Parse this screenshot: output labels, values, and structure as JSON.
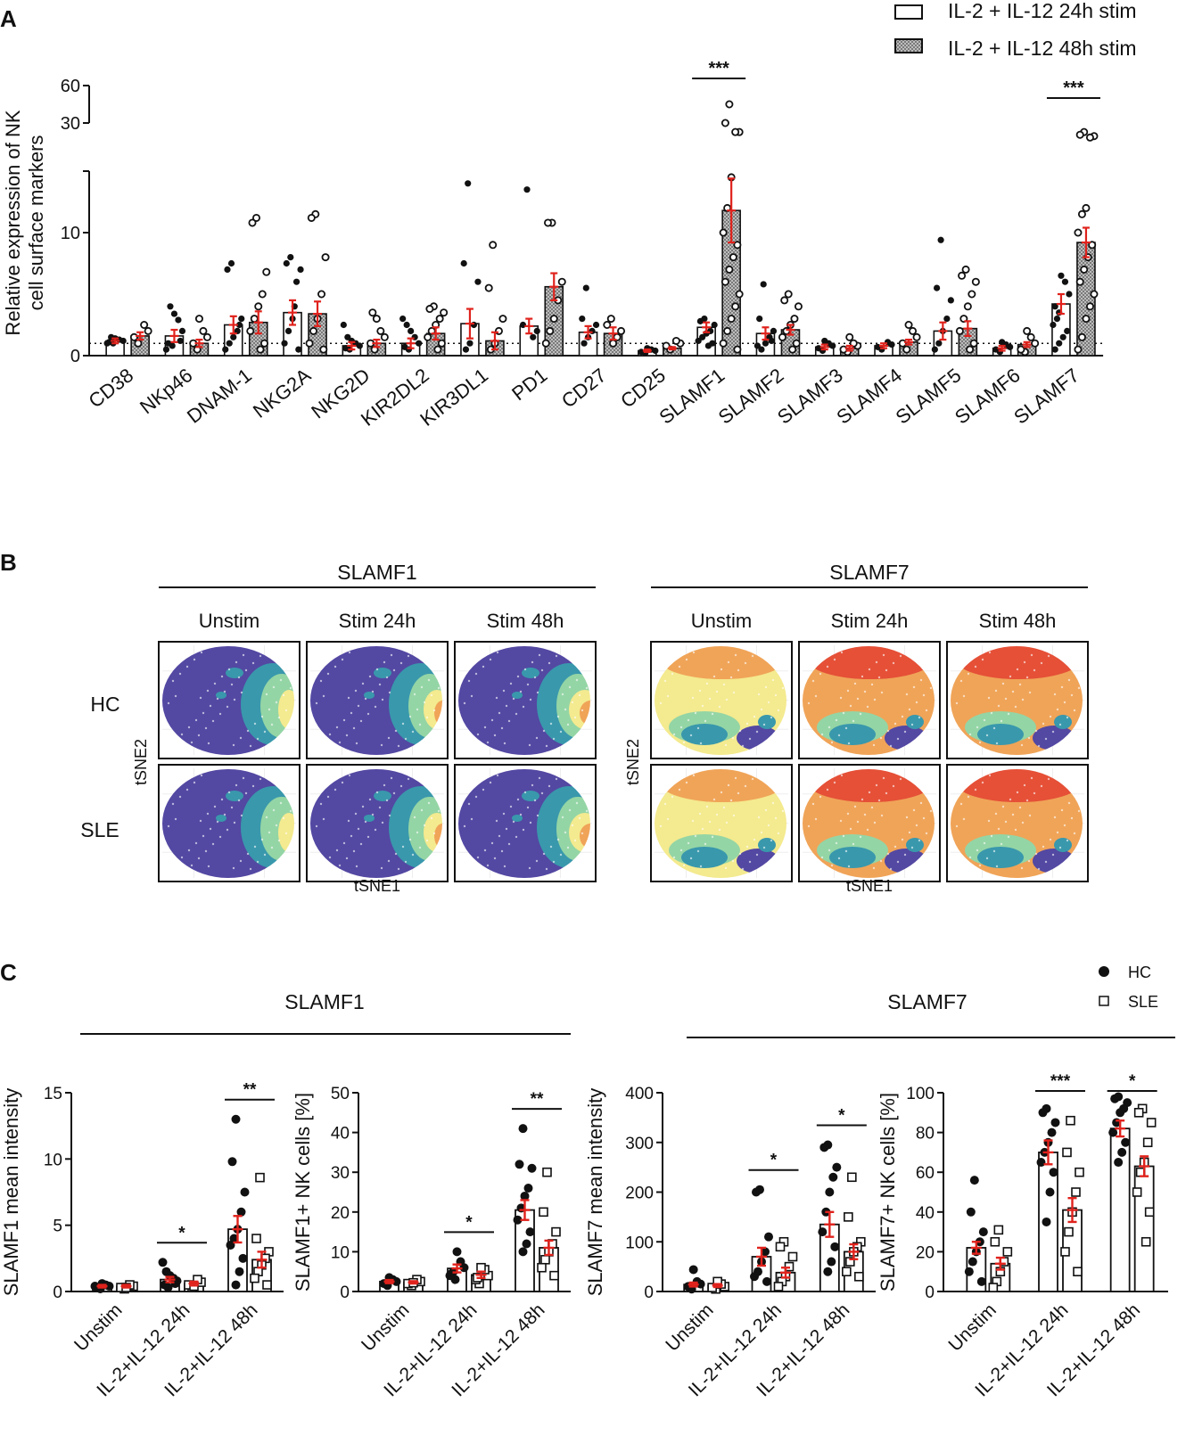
{
  "panel_labels": {
    "a": "A",
    "b": "B",
    "c": "C"
  },
  "colors": {
    "error_bar": "#e0221c",
    "bar_edge": "#111111",
    "hatch": "#9a9a9a"
  },
  "chart_data": [
    {
      "id": "panelA",
      "type": "bar",
      "ylabel": "Relative expression of NK cell surface markers",
      "ylabel_lines": [
        "Relative expression of NK",
        "cell surface markers"
      ],
      "lower_ticks": [
        "0",
        "10"
      ],
      "upper_ticks": [
        "30",
        "60"
      ],
      "ylim_lower": [
        0,
        15
      ],
      "ylim_upper": [
        30,
        60
      ],
      "reference_line": 1,
      "legend": [
        "IL-2 + IL-12 24h stim",
        "IL-2 + IL-12 48h stim"
      ],
      "categories": [
        "CD38",
        "NKp46",
        "DNAM-1",
        "NKG2A",
        "NKG2D",
        "KIR2DL2",
        "KIR3DL1",
        "PD1",
        "CD27",
        "CD25",
        "SLAMF1",
        "SLAMF2",
        "SLAMF3",
        "SLAMF4",
        "SLAMF5",
        "SLAMF6",
        "SLAMF7"
      ],
      "series": [
        {
          "name": "IL-2 + IL-12 24h stim",
          "values": [
            1.2,
            1.6,
            2.5,
            3.5,
            0.8,
            1.0,
            2.6,
            2.4,
            1.9,
            0.4,
            2.3,
            1.8,
            0.7,
            0.8,
            2.0,
            0.6,
            4.2
          ],
          "sem": [
            0.2,
            0.5,
            0.7,
            1.0,
            0.3,
            0.4,
            1.2,
            0.6,
            0.5,
            0.1,
            0.4,
            0.5,
            0.2,
            0.2,
            0.7,
            0.2,
            0.8
          ],
          "points": [
            [
              1.0,
              1.1,
              1.2,
              1.3,
              1.4,
              1.5,
              1.0
            ],
            [
              0.8,
              1.0,
              2.0,
              2.9,
              3.4,
              4.0,
              0.5,
              1.2
            ],
            [
              7.5,
              7.0,
              3.0,
              2.0,
              1.5,
              1.0,
              0.5,
              2.5
            ],
            [
              8.0,
              7.5,
              7.0,
              6.0,
              3.0,
              2.0,
              1.0,
              0.5,
              4.0
            ],
            [
              0.5,
              0.6,
              0.8,
              1.0,
              1.2,
              1.5,
              2.5
            ],
            [
              0.5,
              0.7,
              1.0,
              1.5,
              2.0,
              2.5,
              3.0
            ],
            [
              14.0,
              7.5,
              6.0,
              2.5,
              1.0,
              0.5
            ],
            [
              13.5,
              2.5,
              2.0,
              1.5
            ],
            [
              5.5,
              3.0,
              2.5,
              2.0,
              1.5,
              1.0
            ],
            [
              0.2,
              0.3,
              0.4,
              0.5,
              0.6
            ],
            [
              3.0,
              2.8,
              2.5,
              2.0,
              1.8,
              1.5,
              1.2,
              1.0,
              0.8
            ],
            [
              5.8,
              3.0,
              2.0,
              1.5,
              1.0,
              0.5,
              0.8,
              1.2
            ],
            [
              0.4,
              0.6,
              0.8,
              1.0,
              1.2
            ],
            [
              0.5,
              0.7,
              0.9,
              1.1
            ],
            [
              9.4,
              5.5,
              4.5,
              3.0,
              2.0,
              1.0,
              0.5
            ],
            [
              0.3,
              0.5,
              0.7,
              0.9,
              1.1
            ],
            [
              3.5,
              4.0,
              5.0,
              6.0,
              6.5,
              3.0,
              2.5,
              2.0,
              1.5,
              1.0,
              0.5
            ]
          ]
        },
        {
          "name": "IL-2 + IL-12 48h stim",
          "values": [
            1.6,
            1.0,
            2.7,
            3.4,
            1.0,
            1.8,
            1.2,
            5.6,
            1.8,
            0.6,
            11.8,
            2.1,
            0.6,
            1.1,
            2.2,
            0.9,
            9.2
          ],
          "sem": [
            0.3,
            0.3,
            0.9,
            1.0,
            0.3,
            0.5,
            0.7,
            1.1,
            0.5,
            0.1,
            2.6,
            0.4,
            0.2,
            0.2,
            0.6,
            0.2,
            1.2
          ],
          "points": [
            [
              1.0,
              1.5,
              2.0,
              2.5
            ],
            [
              0.5,
              1.0,
              1.5,
              2.0,
              3.0
            ],
            [
              11.2,
              10.8,
              6.8,
              5.0,
              4.0,
              3.0,
              2.0,
              1.0,
              0.5
            ],
            [
              11.5,
              11.2,
              8.0,
              5.0,
              3.0,
              2.0,
              1.0,
              0.5
            ],
            [
              0.5,
              1.0,
              1.5,
              2.0,
              3.0,
              3.5
            ],
            [
              4.0,
              3.8,
              3.5,
              3.0,
              2.5,
              2.0,
              1.5,
              1.0,
              0.5
            ],
            [
              9.0,
              5.5,
              3.0,
              2.0,
              1.0,
              0.5
            ],
            [
              10.8,
              10.8,
              6.0,
              4.5,
              3.0,
              2.0,
              1.0
            ],
            [
              3.0,
              2.5,
              2.0,
              1.5,
              1.0
            ],
            [
              0.5,
              0.8,
              1.0,
              1.2
            ],
            [
              45.0,
              30.0,
              28.0,
              28.0,
              14.5,
              12.0,
              10.0,
              9.0,
              8.0,
              7.0,
              6.0,
              5.0,
              4.0,
              3.0,
              2.0,
              1.0,
              0.5
            ],
            [
              5.0,
              4.5,
              4.0,
              3.0,
              2.5,
              2.0,
              1.5,
              1.0,
              0.5
            ],
            [
              0.3,
              0.5,
              0.8,
              1.0,
              1.5
            ],
            [
              0.5,
              1.0,
              1.5,
              2.0,
              2.5
            ],
            [
              7.0,
              6.5,
              6.0,
              5.0,
              4.0,
              3.0,
              2.0,
              1.0,
              0.5
            ],
            [
              0.3,
              0.5,
              1.0,
              1.5,
              2.0
            ],
            [
              28.0,
              27.0,
              26.5,
              26.0,
              12.0,
              11.5,
              10.0,
              9.0,
              8.0,
              7.0,
              6.0,
              5.0,
              4.0,
              3.0,
              1.5,
              0.5
            ]
          ]
        }
      ],
      "significance": [
        {
          "category": "SLAMF1",
          "label": "***"
        },
        {
          "category": "SLAMF7",
          "label": "***"
        }
      ]
    },
    {
      "id": "panelC1",
      "type": "bar",
      "group_title": "SLAMF1",
      "ylabel": "SLAMF1 mean intensity",
      "yticks": [
        0,
        5,
        10,
        15
      ],
      "ylim": [
        0,
        15
      ],
      "categories": [
        "Unstim",
        "IL-2+IL-12 24h",
        "IL-2+IL-12 48h"
      ],
      "series": [
        {
          "name": "HC",
          "values": [
            0.4,
            0.9,
            4.7
          ],
          "sem": [
            0.1,
            0.2,
            1.0
          ],
          "points": [
            [
              0.2,
              0.3,
              0.4,
              0.5,
              0.6,
              0.3,
              0.4
            ],
            [
              0.3,
              0.5,
              0.8,
              1.0,
              1.2,
              1.5,
              2.2,
              0.6
            ],
            [
              13.0,
              9.8,
              7.5,
              6.0,
              4.7,
              4.0,
              3.5,
              2.5,
              1.5,
              0.5
            ]
          ]
        },
        {
          "name": "SLE",
          "values": [
            0.4,
            0.6,
            2.4
          ],
          "sem": [
            0.1,
            0.15,
            0.6
          ],
          "points": [
            [
              0.2,
              0.3,
              0.4,
              0.5,
              0.3
            ],
            [
              0.3,
              0.5,
              0.7,
              0.9,
              0.4
            ],
            [
              8.6,
              4.0,
              3.0,
              2.5,
              2.0,
              1.5,
              1.0,
              0.5
            ]
          ]
        }
      ],
      "significance": [
        {
          "from": 1,
          "label": "*"
        },
        {
          "from": 2,
          "label": "**"
        }
      ]
    },
    {
      "id": "panelC2",
      "type": "bar",
      "group_title": "SLAMF1",
      "ylabel": "SLAMF1+ NK cells [%]",
      "yticks": [
        0,
        10,
        20,
        30,
        40,
        50
      ],
      "ylim": [
        0,
        50
      ],
      "categories": [
        "Unstim",
        "IL-2+IL-12 24h",
        "IL-2+IL-12 48h"
      ],
      "series": [
        {
          "name": "HC",
          "values": [
            2.5,
            5.8,
            20.5
          ],
          "sem": [
            0.4,
            1.0,
            2.5
          ],
          "points": [
            [
              1.5,
              2.0,
              2.5,
              3.0,
              3.5,
              2.0
            ],
            [
              3.0,
              4.5,
              6.0,
              7.5,
              10.0,
              5.0,
              4.0
            ],
            [
              41.0,
              32.0,
              31.0,
              26.0,
              24.0,
              21.0,
              18.0,
              15.0,
              12.0,
              10.0
            ]
          ]
        },
        {
          "name": "SLE",
          "values": [
            2.3,
            4.2,
            11.0
          ],
          "sem": [
            0.3,
            0.8,
            1.8
          ],
          "points": [
            [
              1.5,
              2.0,
              2.5,
              3.0,
              2.2
            ],
            [
              2.0,
              3.0,
              4.0,
              5.5,
              6.0,
              3.5
            ],
            [
              30.0,
              20.0,
              15.0,
              12.0,
              10.0,
              8.0,
              6.0,
              4.0
            ]
          ]
        }
      ],
      "significance": [
        {
          "from": 1,
          "label": "*"
        },
        {
          "from": 2,
          "label": "**"
        }
      ]
    },
    {
      "id": "panelC3",
      "type": "bar",
      "group_title": "SLAMF7",
      "ylabel": "SLAMF7 mean intensity",
      "yticks": [
        0,
        100,
        200,
        300,
        400
      ],
      "ylim": [
        0,
        400
      ],
      "categories": [
        "Unstim",
        "IL-2+IL-12 24h",
        "IL-2+IL-12 48h"
      ],
      "series": [
        {
          "name": "HC",
          "values": [
            14,
            70,
            135
          ],
          "sem": [
            4,
            18,
            25
          ],
          "points": [
            [
              5,
              10,
              15,
              20,
              44,
              8
            ],
            [
              205,
              200,
              110,
              80,
              60,
              40,
              30,
              20
            ],
            [
              295,
              290,
              250,
              230,
              200,
              160,
              120,
              90,
              60,
              40
            ]
          ]
        },
        {
          "name": "SLE",
          "values": [
            12,
            38,
            80
          ],
          "sem": [
            3,
            10,
            15
          ],
          "points": [
            [
              5,
              8,
              10,
              15,
              20
            ],
            [
              100,
              90,
              70,
              50,
              30,
              20,
              10
            ],
            [
              230,
              150,
              100,
              90,
              80,
              60,
              40,
              30
            ]
          ]
        }
      ],
      "significance": [
        {
          "from": 1,
          "label": "*"
        },
        {
          "from": 2,
          "label": "*"
        }
      ]
    },
    {
      "id": "panelC4",
      "type": "bar",
      "group_title": "SLAMF7",
      "ylabel": "SLAMF7+ NK cells  [%]",
      "yticks": [
        0,
        20,
        40,
        60,
        80,
        100
      ],
      "ylim": [
        0,
        100
      ],
      "categories": [
        "Unstim",
        "IL-2+IL-12 24h",
        "IL-2+IL-12 48h"
      ],
      "series": [
        {
          "name": "HC",
          "values": [
            22,
            70,
            82
          ],
          "sem": [
            3,
            6,
            4
          ],
          "points": [
            [
              56,
              40,
              30,
              25,
              20,
              15,
              10,
              5
            ],
            [
              92,
              90,
              85,
              80,
              75,
              70,
              65,
              60,
              50,
              35
            ],
            [
              98,
              97,
              95,
              92,
              90,
              85,
              80,
              75,
              70,
              65
            ]
          ]
        },
        {
          "name": "SLE",
          "values": [
            14,
            41,
            63
          ],
          "sem": [
            3,
            6,
            5
          ],
          "points": [
            [
              31,
              25,
              20,
              15,
              10,
              5,
              2
            ],
            [
              86,
              70,
              60,
              50,
              40,
              30,
              20,
              10
            ],
            [
              92,
              90,
              85,
              75,
              65,
              60,
              50,
              40,
              25
            ]
          ]
        }
      ],
      "significance": [
        {
          "from": 1,
          "label": "***"
        },
        {
          "from": 2,
          "label": "*"
        }
      ]
    }
  ],
  "panelB": {
    "groups": [
      {
        "title": "SLAMF1",
        "columns": [
          "Unstim",
          "Stim 24h",
          "Stim 48h"
        ],
        "scheme": "low"
      },
      {
        "title": "SLAMF7",
        "columns": [
          "Unstim",
          "Stim 24h",
          "Stim 48h"
        ],
        "scheme": "high"
      }
    ],
    "rows": [
      "HC",
      "SLE"
    ],
    "xlabel": "tSNE1",
    "ylabel": "tSNE2",
    "colors": [
      "#4a3f9e",
      "#2f93a8",
      "#8fd3a1",
      "#f4e98a",
      "#f0a050",
      "#e4472d"
    ]
  },
  "panelC_legend": [
    "HC",
    "SLE"
  ]
}
